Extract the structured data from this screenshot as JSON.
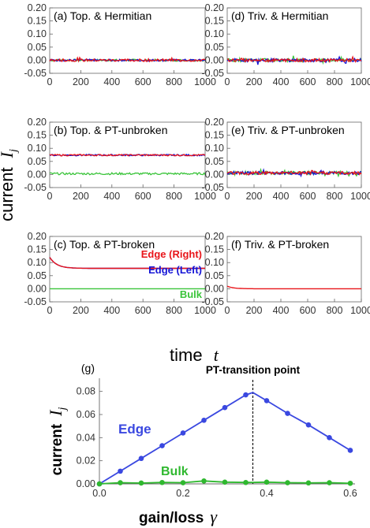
{
  "ylabel_top": {
    "text": "current",
    "symbol": "I",
    "sub": "j"
  },
  "xlabel_top": {
    "text": "time",
    "symbol": "t"
  },
  "colors": {
    "red": "#e8151a",
    "blue": "#1414d6",
    "green": "#3ac43a",
    "edge_line": "#3a48e0",
    "bulk_line": "#2fb82f"
  },
  "chart_data": [
    {
      "id": "a",
      "title": "(a) Top. & Hermitian",
      "type": "line",
      "xlim": [
        0,
        1000
      ],
      "ylim": [
        -0.05,
        0.2
      ],
      "xticks": [
        "0",
        "200",
        "400",
        "600",
        "800",
        "1000"
      ],
      "yticks": [
        "-0.05",
        "0.00",
        "0.05",
        "0.10",
        "0.15",
        "0.20"
      ],
      "series": [
        {
          "color": "green",
          "baseline": 0.0,
          "noise": 0.004
        },
        {
          "color": "blue",
          "baseline": 0.0,
          "noise": 0.004
        },
        {
          "color": "red",
          "baseline": 0.0,
          "noise": 0.005
        }
      ]
    },
    {
      "id": "b",
      "title": "(b) Top. & PT-unbroken",
      "type": "line",
      "xlim": [
        0,
        1000
      ],
      "ylim": [
        -0.05,
        0.2
      ],
      "xticks": [
        "0",
        "200",
        "400",
        "600",
        "800",
        "1000"
      ],
      "yticks": [
        "-0.05",
        "0.00",
        "0.05",
        "0.10",
        "0.15",
        "0.20"
      ],
      "series": [
        {
          "color": "green",
          "baseline": 0.003,
          "noise": 0.004
        },
        {
          "color": "blue",
          "baseline": 0.074,
          "noise": 0.003
        },
        {
          "color": "red",
          "baseline": 0.074,
          "noise": 0.003
        }
      ]
    },
    {
      "id": "c",
      "title": "(c) Top. & PT-broken",
      "type": "line",
      "xlim": [
        0,
        1000
      ],
      "ylim": [
        -0.05,
        0.2
      ],
      "xticks": [
        "0",
        "200",
        "400",
        "600",
        "800",
        "1000"
      ],
      "yticks": [
        "-0.05",
        "0.00",
        "0.05",
        "0.10",
        "0.15",
        "0.20"
      ],
      "series": [
        {
          "color": "green",
          "name": "Bulk",
          "start": 0.0,
          "end": 0.0
        },
        {
          "color": "blue",
          "name": "Edge (Left)",
          "start": 0.12,
          "end": 0.078
        },
        {
          "color": "red",
          "name": "Edge (Right)",
          "start": 0.12,
          "end": 0.078
        }
      ]
    },
    {
      "id": "d",
      "title": "(d) Triv. & Hermitian",
      "type": "line",
      "xlim": [
        0,
        1000
      ],
      "ylim": [
        -0.05,
        0.2
      ],
      "xticks": [
        "0",
        "200",
        "400",
        "600",
        "800",
        "1000"
      ],
      "yticks": [
        "-0.05",
        "0.00",
        "0.05",
        "0.10",
        "0.15",
        "0.20"
      ],
      "series": [
        {
          "color": "green",
          "baseline": 0.0,
          "noise": 0.006
        },
        {
          "color": "blue",
          "baseline": 0.0,
          "noise": 0.006
        },
        {
          "color": "red",
          "baseline": 0.0,
          "noise": 0.006
        }
      ]
    },
    {
      "id": "e",
      "title": "(e) Triv. & PT-unbroken",
      "type": "line",
      "xlim": [
        0,
        1000
      ],
      "ylim": [
        -0.05,
        0.2
      ],
      "xticks": [
        "0",
        "200",
        "400",
        "600",
        "800",
        "1000"
      ],
      "yticks": [
        "-0.05",
        "0.00",
        "0.05",
        "0.10",
        "0.15",
        "0.20"
      ],
      "series": [
        {
          "color": "green",
          "baseline": 0.006,
          "noise": 0.006
        },
        {
          "color": "blue",
          "baseline": 0.006,
          "noise": 0.006
        },
        {
          "color": "red",
          "baseline": 0.006,
          "noise": 0.006
        }
      ]
    },
    {
      "id": "f",
      "title": "(f) Triv. & PT-broken",
      "type": "line",
      "xlim": [
        0,
        1000
      ],
      "ylim": [
        -0.05,
        0.2
      ],
      "xticks": [
        "0",
        "200",
        "400",
        "600",
        "800",
        "1000"
      ],
      "yticks": [
        "-0.05",
        "0.00",
        "0.05",
        "0.10",
        "0.15",
        "0.20"
      ],
      "series": [
        {
          "color": "red",
          "start": 0.01,
          "end": 0.0
        }
      ]
    },
    {
      "id": "g",
      "title": "(g)",
      "type": "line",
      "xlim": [
        0,
        0.6
      ],
      "ylim": [
        0,
        0.09
      ],
      "xticks": [
        "0.0",
        "0.2",
        "0.4",
        "0.6"
      ],
      "yticks": [
        "0.00",
        "0.02",
        "0.04",
        "0.06",
        "0.08"
      ],
      "xlabel": "gain/loss",
      "xlabel_symbol": "γ",
      "ylabel": "current",
      "ylabel_symbol": "I",
      "ylabel_sub": "j",
      "annotation": "PT-transition point",
      "transition_x": 0.367,
      "x": [
        0.0,
        0.05,
        0.1,
        0.15,
        0.2,
        0.25,
        0.3,
        0.35,
        0.367,
        0.4,
        0.45,
        0.5,
        0.55,
        0.6
      ],
      "series": [
        {
          "name": "Edge",
          "values": [
            0.0,
            0.011,
            0.022,
            0.033,
            0.044,
            0.055,
            0.066,
            0.077,
            0.079,
            0.072,
            0.061,
            0.051,
            0.04,
            0.029
          ]
        },
        {
          "name": "Bulk",
          "values": [
            0.0,
            0.001,
            0.0007,
            0.0012,
            0.001,
            0.0025,
            0.0015,
            0.0012,
            0.0012,
            0.0015,
            0.001,
            0.0008,
            0.001,
            0.0005
          ]
        }
      ]
    }
  ]
}
